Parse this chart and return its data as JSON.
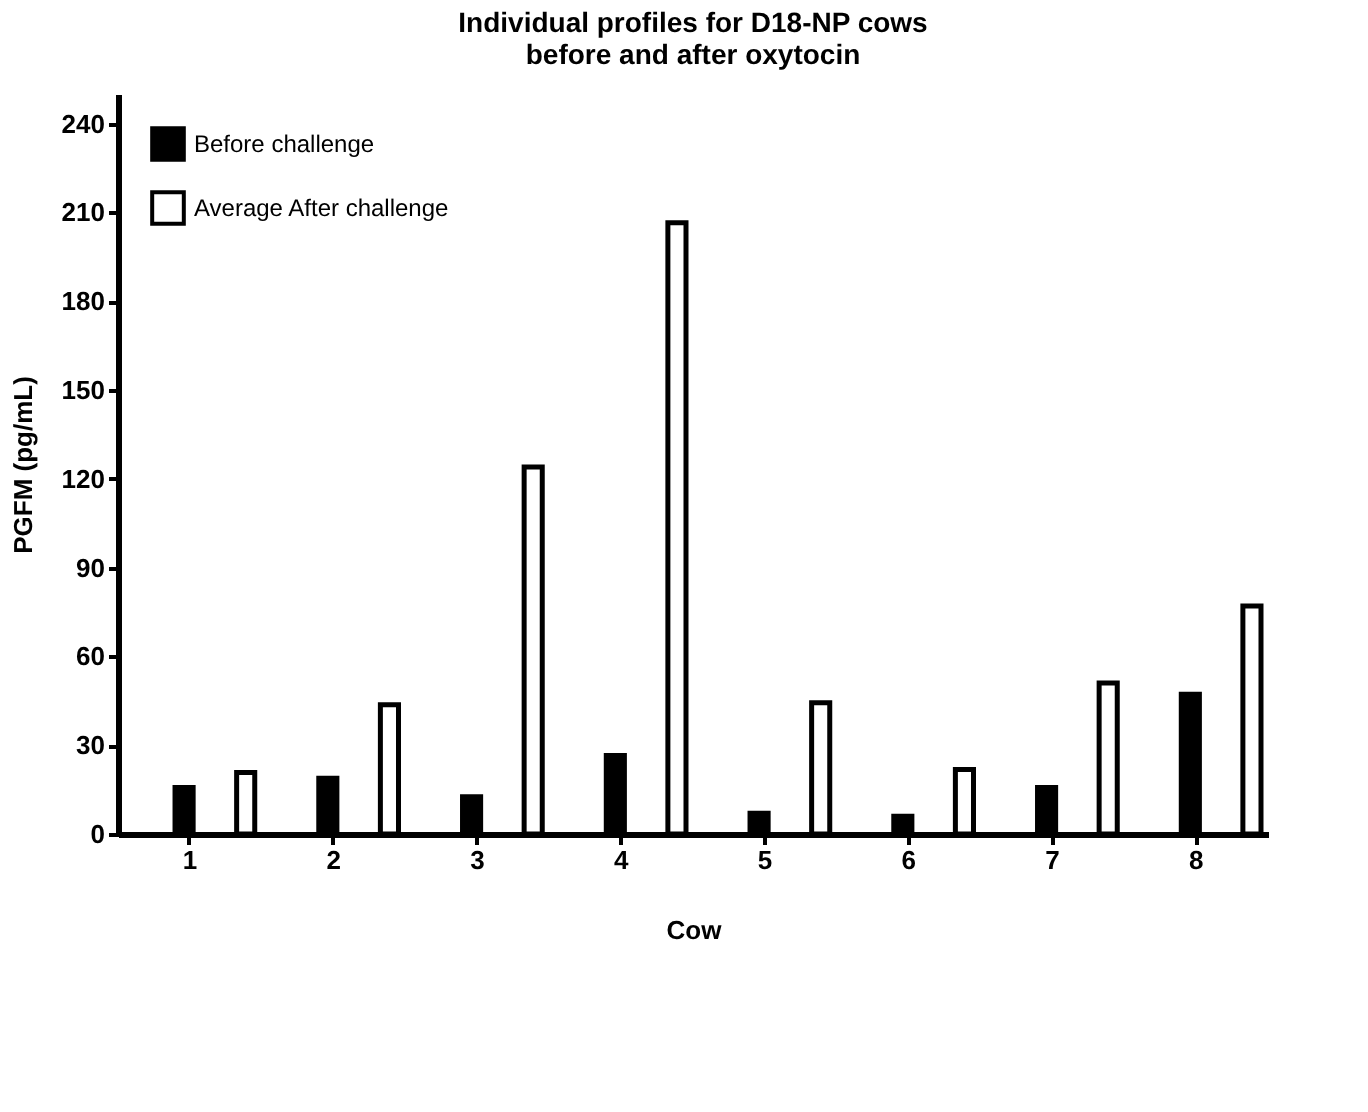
{
  "chart_data": {
    "type": "bar",
    "title": "Individual profiles for D18-NP cows\nbefore and after oxytocin",
    "xlabel": "Cow",
    "ylabel": "PGFM (pg/mL)",
    "categories": [
      "1",
      "2",
      "3",
      "4",
      "5",
      "6",
      "7",
      "8"
    ],
    "series": [
      {
        "name": "Before challenge",
        "color": "#000000",
        "values": [
          15.7,
          18.8,
          12.6,
          26.5,
          7,
          6,
          15.7,
          47.2
        ]
      },
      {
        "name": "Average After challenge",
        "color": "#ffffff",
        "values": [
          20.8,
          43.7,
          124,
          206.5,
          44.3,
          21.8,
          51,
          77
        ]
      }
    ],
    "ylim": [
      0,
      250
    ],
    "yticks": [
      0,
      30,
      60,
      90,
      120,
      150,
      180,
      210,
      240
    ],
    "grid": false,
    "legend": "top left"
  }
}
